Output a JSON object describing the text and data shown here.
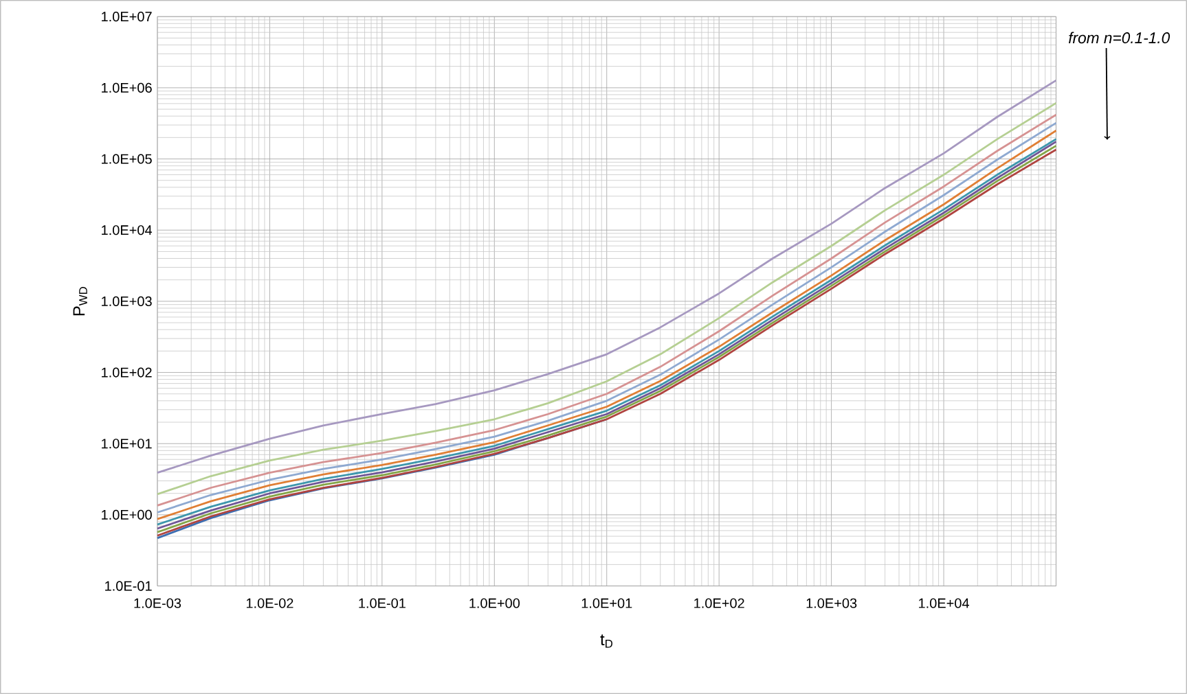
{
  "chart_data": {
    "type": "line",
    "xlabel": "t$_{D}$",
    "ylabel": "P$_{WD}$",
    "log": "xy",
    "grid": true,
    "x": [
      0.001,
      0.003,
      0.01,
      0.03,
      0.1,
      0.3,
      1,
      3,
      10,
      30,
      100,
      300,
      1000,
      3000,
      10000,
      30000,
      100000
    ],
    "xlim": [
      0.001,
      100000
    ],
    "ylim": [
      0.1,
      10000000
    ],
    "xticks": [
      {
        "value": 0.001,
        "label": "1.0E-03"
      },
      {
        "value": 0.01,
        "label": "1.0E-02"
      },
      {
        "value": 0.1,
        "label": "1.0E-01"
      },
      {
        "value": 1,
        "label": "1.0E+00"
      },
      {
        "value": 10,
        "label": "1.0E+01"
      },
      {
        "value": 100,
        "label": "1.0E+02"
      },
      {
        "value": 1000,
        "label": "1.0E+03"
      },
      {
        "value": 10000,
        "label": "1.0E+04"
      },
      {
        "value": 100000,
        "label": null
      }
    ],
    "yticks": [
      {
        "value": 0.1,
        "label": "1.0E-01"
      },
      {
        "value": 1,
        "label": "1.0E+00"
      },
      {
        "value": 10,
        "label": "1.0E+01"
      },
      {
        "value": 100,
        "label": "1.0E+02"
      },
      {
        "value": 1000,
        "label": "1.0E+03"
      },
      {
        "value": 10000,
        "label": "1.0E+04"
      },
      {
        "value": 100000,
        "label": "1.0E+05"
      },
      {
        "value": 1000000,
        "label": "1.0E+06"
      },
      {
        "value": 10000000,
        "label": "1.0E+07"
      }
    ],
    "series": [
      {
        "color": "#3c6eb2",
        "values": [
          0.47,
          0.9,
          1.6,
          2.35,
          3.25,
          4.6,
          7.0,
          12,
          22,
          null,
          null,
          null,
          null,
          null,
          null,
          null,
          null
        ]
      },
      {
        "color": "#b04440",
        "values": [
          0.51,
          0.95,
          1.65,
          2.4,
          3.3,
          4.7,
          7.2,
          12,
          22,
          50,
          150,
          460,
          1500,
          4600,
          14500,
          44000,
          135000
        ]
      },
      {
        "color": "#84a547",
        "values": [
          0.57,
          1.05,
          1.8,
          2.65,
          3.6,
          5.1,
          7.8,
          13,
          24,
          55,
          165,
          500,
          1650,
          5000,
          16000,
          49000,
          153000
        ]
      },
      {
        "color": "#6f5596",
        "values": [
          0.64,
          1.15,
          2.0,
          2.9,
          3.95,
          5.6,
          8.5,
          14.5,
          26,
          60,
          180,
          550,
          1800,
          5500,
          17500,
          54000,
          175000
        ]
      },
      {
        "color": "#3d97ad",
        "values": [
          0.73,
          1.3,
          2.2,
          3.2,
          4.4,
          6.2,
          9.3,
          16,
          29,
          66,
          200,
          610,
          2000,
          6100,
          19500,
          60000,
          190000
        ]
      },
      {
        "color": "#e07f35",
        "values": [
          0.87,
          1.55,
          2.6,
          3.7,
          5.0,
          7.0,
          10.5,
          18,
          33,
          76,
          230,
          700,
          2300,
          7200,
          23000,
          74000,
          250000
        ]
      },
      {
        "color": "#8ea9d1",
        "values": [
          1.08,
          1.9,
          3.1,
          4.4,
          6.0,
          8.4,
          12.5,
          21,
          40,
          93,
          290,
          900,
          3000,
          9500,
          31000,
          98000,
          320000
        ]
      },
      {
        "color": "#d69292",
        "values": [
          1.35,
          2.4,
          3.9,
          5.5,
          7.4,
          10.3,
          15.5,
          26,
          50,
          120,
          380,
          1200,
          4000,
          12800,
          41000,
          130000,
          417000
        ]
      },
      {
        "color": "#b5cf92",
        "values": [
          1.95,
          3.5,
          5.8,
          8.2,
          11,
          15,
          22,
          37,
          75,
          180,
          580,
          1850,
          6000,
          19000,
          60000,
          190000,
          610000
        ]
      },
      {
        "color": "#a698c0",
        "values": [
          3.9,
          6.8,
          11.7,
          18,
          26,
          36,
          56,
          95,
          180,
          430,
          1290,
          4000,
          12300,
          39000,
          120000,
          390000,
          1270000
        ]
      }
    ],
    "annotations": [
      "from n=0.1-1.0"
    ]
  }
}
